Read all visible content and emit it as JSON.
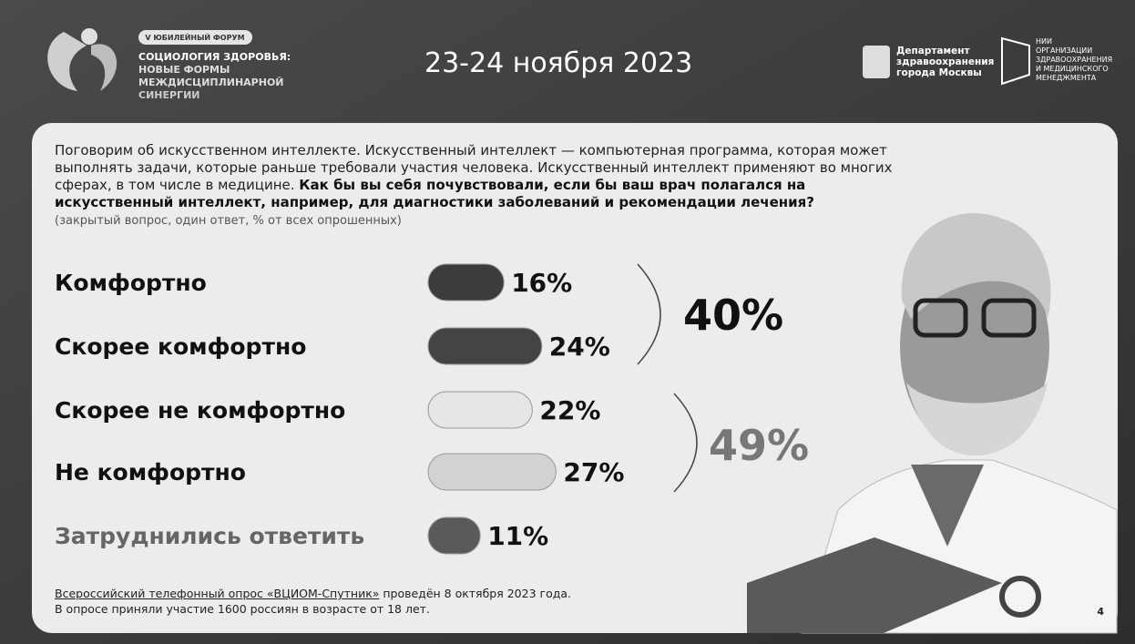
{
  "header": {
    "badge": "V ЮБИЛЕЙНЫЙ ФОРУМ",
    "forum_lines": [
      "СОЦИОЛОГИЯ ЗДОРОВЬЯ:",
      "НОВЫЕ ФОРМЫ",
      "МЕЖДИСЦИПЛИНАРНОЙ",
      "СИНЕРГИИ"
    ],
    "date": "23-24 ноября 2023",
    "partner_1": [
      "Департамент",
      "здравоохранения",
      "города Москвы"
    ],
    "partner_2": [
      "НИИ",
      "ОРГАНИЗАЦИИ",
      "ЗДРАВООХРАНЕНИЯ",
      "И МЕДИЦИНСКОГО",
      "МЕНЕДЖМЕНТА"
    ]
  },
  "question": {
    "intro": "Поговорим об искусственном интеллекте. Искусственный интеллект — компьютерная программа, которая может выполнять задачи, которые раньше требовали участия человека. Искусственный интеллект применяют во многих сферах, в том числе в медицине.",
    "text": "Как бы вы себя почувствовали, если бы ваш врач полагался на искусственный интеллект, например, для диагностики заболеваний и рекомендации лечения?",
    "note": "(закрытый вопрос, один ответ, % от всех опрошенных)"
  },
  "chart_data": {
    "type": "bar",
    "categories": [
      "Комфортно",
      "Скорее комфортно",
      "Скорее не комфортно",
      "Не комфортно",
      "Затруднились ответить"
    ],
    "values": [
      16,
      24,
      22,
      27,
      11
    ],
    "value_labels": [
      "16%",
      "24%",
      "22%",
      "27%",
      "11%"
    ],
    "colors": [
      "#3c3c3c",
      "#444444",
      "#e6e6e6",
      "#d2d2d2",
      "#5a5a5a"
    ],
    "label_colors": [
      "#111111",
      "#111111",
      "#111111",
      "#111111",
      "#666666"
    ],
    "group_totals": [
      {
        "value": 40,
        "label": "40%"
      },
      {
        "value": 49,
        "label": "49%"
      }
    ]
  },
  "footer": {
    "source_link": "Всероссийский телефонный опрос «ВЦИОМ-Спутник»",
    "source_rest": " проведён 8 октября 2023 года.",
    "sample": "В опросе приняли участие 1600 россиян в возрасте от 18 лет.",
    "page": "4"
  }
}
